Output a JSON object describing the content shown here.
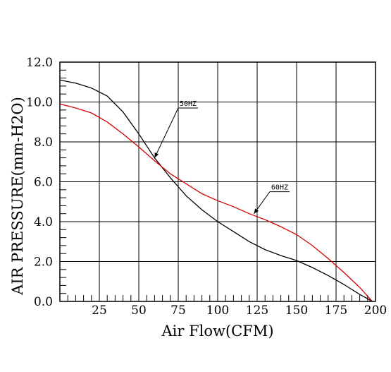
{
  "chart_data": {
    "type": "line",
    "title": "",
    "xlabel": "Air Flow(CFM)",
    "ylabel": "AIR PRESSURE(mm-H2O)",
    "xlim": [
      0,
      200
    ],
    "ylim": [
      0,
      12
    ],
    "x_ticks": [
      25,
      50,
      75,
      100,
      125,
      150,
      175,
      200
    ],
    "x_tick_labels": [
      "25",
      "50",
      "75",
      "100",
      "125",
      "150",
      "175",
      "200"
    ],
    "y_ticks": [
      0,
      2,
      4,
      6,
      8,
      10,
      12
    ],
    "y_tick_labels": [
      "0.0",
      "2.0",
      "4.0",
      "6.0",
      "8.0",
      "10.0",
      "12.0"
    ],
    "grid": true,
    "minor_ticks": true,
    "series": [
      {
        "name": "50HZ",
        "color": "#000000",
        "points": [
          [
            0,
            11.1
          ],
          [
            10,
            10.95
          ],
          [
            20,
            10.7
          ],
          [
            30,
            10.3
          ],
          [
            40,
            9.5
          ],
          [
            50,
            8.4
          ],
          [
            60,
            7.2
          ],
          [
            70,
            6.2
          ],
          [
            80,
            5.3
          ],
          [
            90,
            4.6
          ],
          [
            100,
            4.0
          ],
          [
            110,
            3.5
          ],
          [
            120,
            3.0
          ],
          [
            130,
            2.6
          ],
          [
            140,
            2.3
          ],
          [
            150,
            2.05
          ],
          [
            160,
            1.7
          ],
          [
            170,
            1.3
          ],
          [
            180,
            0.85
          ],
          [
            190,
            0.35
          ],
          [
            198,
            0.0
          ]
        ]
      },
      {
        "name": "60HZ",
        "color": "#d40000",
        "points": [
          [
            0,
            9.9
          ],
          [
            10,
            9.7
          ],
          [
            20,
            9.45
          ],
          [
            30,
            9.0
          ],
          [
            40,
            8.4
          ],
          [
            50,
            7.75
          ],
          [
            60,
            7.05
          ],
          [
            70,
            6.4
          ],
          [
            80,
            5.9
          ],
          [
            90,
            5.4
          ],
          [
            100,
            5.05
          ],
          [
            110,
            4.75
          ],
          [
            120,
            4.4
          ],
          [
            130,
            4.1
          ],
          [
            140,
            3.75
          ],
          [
            150,
            3.35
          ],
          [
            160,
            2.8
          ],
          [
            170,
            2.15
          ],
          [
            180,
            1.45
          ],
          [
            190,
            0.7
          ],
          [
            198,
            0.0
          ]
        ]
      }
    ],
    "annotations": [
      {
        "text": "50HZ",
        "series": "50HZ",
        "point": [
          60,
          7.2
        ],
        "label_at": [
          75,
          9.7
        ]
      },
      {
        "text": "60HZ",
        "series": "60HZ",
        "point": [
          123,
          4.4
        ],
        "label_at": [
          133,
          5.5
        ]
      }
    ]
  }
}
